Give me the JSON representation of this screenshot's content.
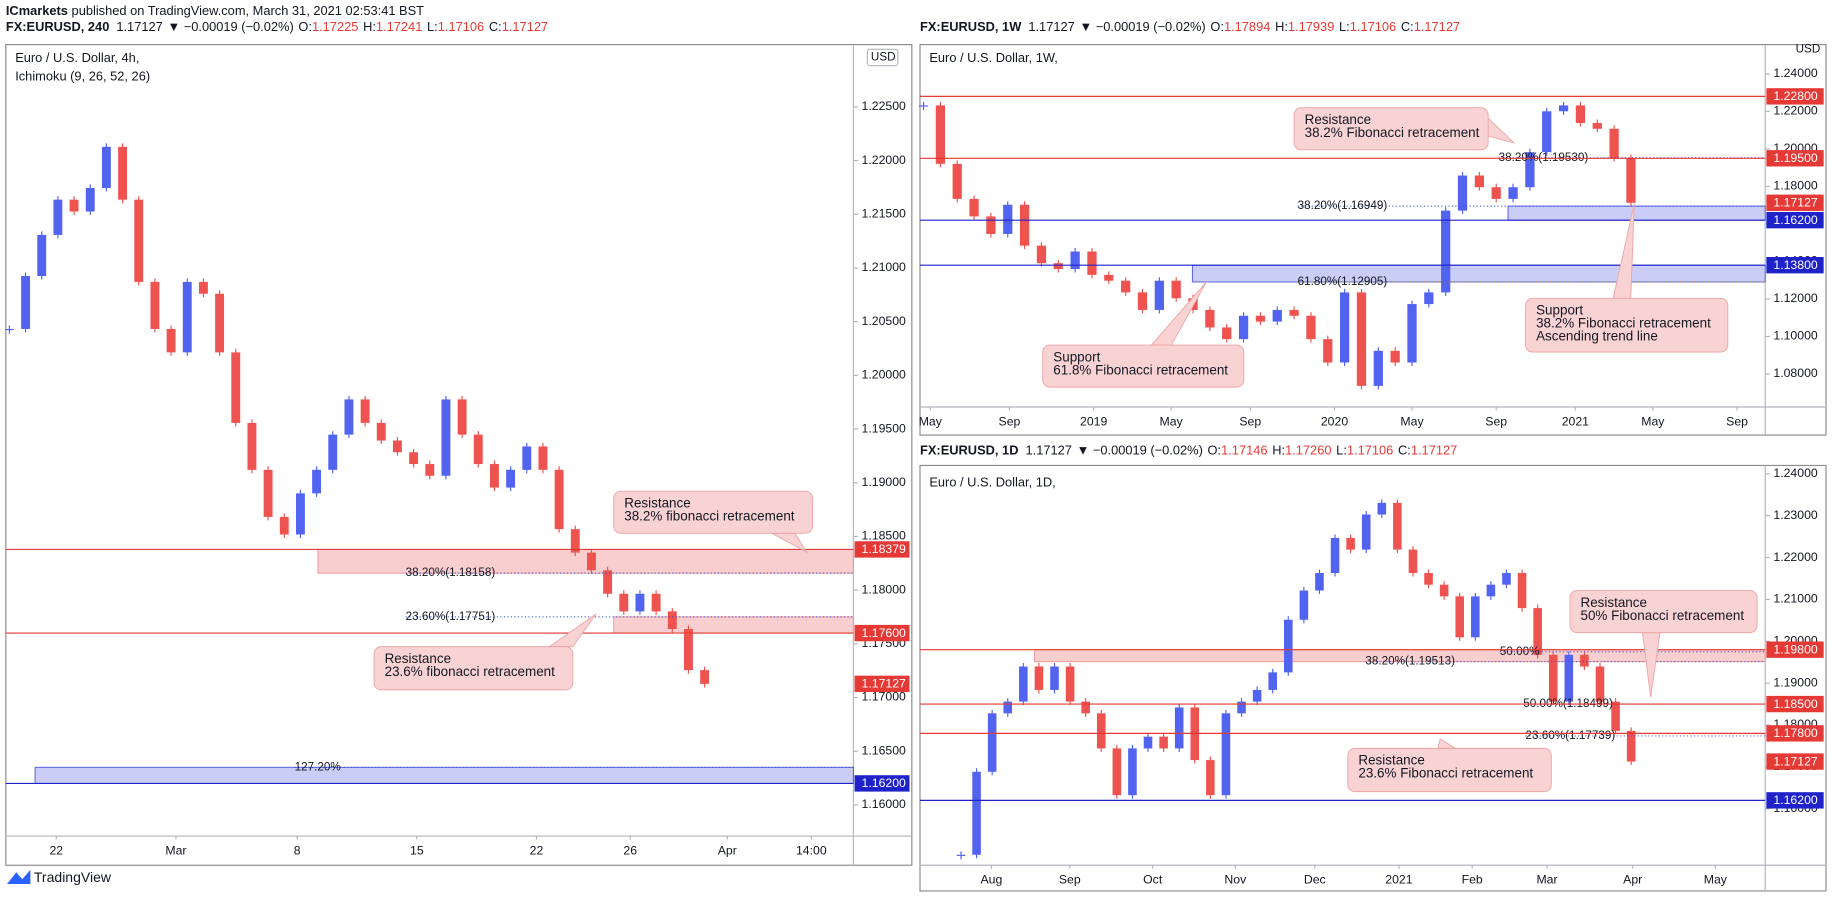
{
  "header": {
    "author": "ICmarkets",
    "published": "published on TradingView.com, March 31, 2021 02:53:41 BST"
  },
  "footer": {
    "brand": "TradingView"
  },
  "chart_data": [
    {
      "type": "candlestick",
      "symbol": "FX:EURUSD, 240",
      "last": "1.17127",
      "change": "▼ −0.00019 (−0.02%)",
      "ohlc": [
        {
          "label": "O:",
          "value": "1.17225"
        },
        {
          "label": "H:",
          "value": "1.17241"
        },
        {
          "label": "L:",
          "value": "1.17106"
        },
        {
          "label": "C:",
          "value": "1.17127"
        }
      ],
      "title": "Euro / U.S. Dollar, 4h,",
      "indicator": "Ichimoku (9, 26, 52, 26)",
      "currency": "USD",
      "up_color": "#5263f0",
      "down_color": "#ef5350",
      "values": [
        1.20432,
        1.20925,
        1.21308,
        1.21636,
        1.21526,
        1.21745,
        1.22128,
        1.21636,
        1.2087,
        1.20432,
        1.20214,
        1.2087,
        1.2076,
        1.20214,
        1.19557,
        1.1912,
        1.18682,
        1.18518,
        1.18901,
        1.1912,
        1.19448,
        1.19776,
        1.19557,
        1.19393,
        1.19284,
        1.19174,
        1.19065,
        1.19776,
        1.19448,
        1.19174,
        1.18955,
        1.1912,
        1.19338,
        1.1912,
        1.18568,
        1.18349,
        1.18185,
        1.17966,
        1.17802,
        1.17966,
        1.17802,
        1.17638,
        1.17255,
        1.17127
      ],
      "xlim": [
        -0.22,
        52.2
      ],
      "xticks": [
        {
          "value": 2.9,
          "label": "22"
        },
        {
          "value": 10.3,
          "label": "Mar"
        },
        {
          "value": 17.8,
          "label": "8"
        },
        {
          "value": 25.2,
          "label": "15"
        },
        {
          "value": 32.6,
          "label": "22"
        },
        {
          "value": 38.4,
          "label": "26"
        },
        {
          "value": 44.4,
          "label": "Apr"
        },
        {
          "value": 49.6,
          "label": "14:00"
        }
      ],
      "ylim": [
        1.1571,
        1.2308
      ],
      "yticks": [
        {
          "value": 1.16,
          "label": "1.16000"
        },
        {
          "value": 1.165,
          "label": "1.16500"
        },
        {
          "value": 1.17,
          "label": "1.17000"
        },
        {
          "value": 1.175,
          "label": "1.17500"
        },
        {
          "value": 1.18,
          "label": "1.18000"
        },
        {
          "value": 1.185,
          "label": "1.18500"
        },
        {
          "value": 1.19,
          "label": "1.19000"
        },
        {
          "value": 1.195,
          "label": "1.19500"
        },
        {
          "value": 1.2,
          "label": "1.20000"
        },
        {
          "value": 1.205,
          "label": "1.20500"
        },
        {
          "value": 1.21,
          "label": "1.21000"
        },
        {
          "value": 1.215,
          "label": "1.21500"
        },
        {
          "value": 1.22,
          "label": "1.22000"
        },
        {
          "value": 1.225,
          "label": "1.22500"
        }
      ],
      "levels": [
        {
          "value": 1.18379,
          "label": "1.18379",
          "color": "#e53935"
        },
        {
          "value": 1.176,
          "label": "1.17600",
          "color": "#e53935"
        },
        {
          "value": 1.162,
          "label": "1.16200",
          "color": "#1e22c8"
        }
      ],
      "last_price": {
        "value": 1.17127,
        "label": "1.17127",
        "color": "#e53935"
      },
      "zones": [
        {
          "lo": 1.18158,
          "hi": 1.18379,
          "color": "#f8c9c9"
        },
        {
          "lo": 1.176,
          "hi": 1.17751,
          "color": "#f8c9c9"
        },
        {
          "lo": 1.162,
          "hi": 1.1635,
          "color": "#c5c9f7"
        }
      ],
      "fibs": [
        {
          "value": 1.18158,
          "label": "38.20%(1.18158)",
          "color": "#2f49d1"
        },
        {
          "value": 1.17751,
          "label": "23.60%(1.17751)",
          "color": "#2f49d1"
        },
        {
          "value": 1.1635,
          "label": "127.20%",
          "color": "#2f49d1"
        }
      ],
      "annotations": [
        {
          "lines": [
            "Resistance",
            "38.2% fibonacci retracement"
          ]
        },
        {
          "lines": [
            "Resistance",
            "23.6% fibonacci retracement"
          ]
        }
      ]
    },
    {
      "type": "candlestick",
      "symbol": "FX:EURUSD, 1W",
      "last": "1.17127",
      "change": "▼ −0.00019 (−0.02%)",
      "ohlc": [
        {
          "label": "O:",
          "value": "1.17894"
        },
        {
          "label": "H:",
          "value": "1.17939"
        },
        {
          "label": "L:",
          "value": "1.17106"
        },
        {
          "label": "C:",
          "value": "1.17127"
        }
      ],
      "title": "Euro / U.S. Dollar, 1W,",
      "currency": "USD",
      "up_color": "#5263f0",
      "down_color": "#ef5350",
      "values": [
        1.22318,
        1.19203,
        1.17334,
        1.164,
        1.15465,
        1.17022,
        1.14842,
        1.13907,
        1.13596,
        1.1453,
        1.13284,
        1.12973,
        1.1235,
        1.11415,
        1.12973,
        1.12038,
        1.11415,
        1.10481,
        1.09858,
        1.11104,
        1.10792,
        1.11415,
        1.11104,
        1.09858,
        1.08612,
        1.1235,
        1.07366,
        1.09235,
        1.08612,
        1.11727,
        1.1235,
        1.16711,
        1.1858,
        1.17957,
        1.17334,
        1.17957,
        1.19826,
        1.22006,
        1.22318,
        1.21383,
        1.21072,
        1.19514,
        1.17127
      ],
      "xlim": [
        -0.21,
        49.97
      ],
      "xticks": [
        {
          "value": 0.4,
          "label": "May"
        },
        {
          "value": 5.1,
          "label": "Sep"
        },
        {
          "value": 10.1,
          "label": "2019"
        },
        {
          "value": 14.7,
          "label": "May"
        },
        {
          "value": 19.4,
          "label": "Sep"
        },
        {
          "value": 24.4,
          "label": "2020"
        },
        {
          "value": 29.0,
          "label": "May"
        },
        {
          "value": 34.0,
          "label": "Sep"
        },
        {
          "value": 38.7,
          "label": "2021"
        },
        {
          "value": 43.3,
          "label": "May"
        },
        {
          "value": 48.3,
          "label": "Sep"
        }
      ],
      "ylim": [
        1.0624,
        1.2556
      ],
      "yticks": [
        {
          "value": 1.08,
          "label": "1.08000"
        },
        {
          "value": 1.1,
          "label": "1.10000"
        },
        {
          "value": 1.12,
          "label": "1.12000"
        },
        {
          "value": 1.14,
          "label": "1.14000"
        },
        {
          "value": 1.16,
          "label": "1.16000"
        },
        {
          "value": 1.18,
          "label": "1.18000"
        },
        {
          "value": 1.2,
          "label": "1.20000"
        },
        {
          "value": 1.22,
          "label": "1.22000"
        },
        {
          "value": 1.24,
          "label": "1.24000"
        }
      ],
      "levels": [
        {
          "value": 1.228,
          "label": "1.22800",
          "color": "#e53935"
        },
        {
          "value": 1.195,
          "label": "1.19500",
          "color": "#e53935"
        },
        {
          "value": 1.162,
          "label": "1.16200",
          "color": "#1e22c8"
        },
        {
          "value": 1.138,
          "label": "1.13800",
          "color": "#1e22c8"
        }
      ],
      "last_price": {
        "value": 1.17127,
        "label": "1.17127",
        "color": "#e53935"
      },
      "zones": [
        {
          "lo": 1.162,
          "hi": 1.16949,
          "color": "#c5c9f7"
        },
        {
          "lo": 1.12905,
          "hi": 1.138,
          "color": "#c5c9f7"
        }
      ],
      "fibs": [
        {
          "value": 1.1953,
          "label": "38.20%(1.19530)",
          "color": "#2f49d1"
        },
        {
          "value": 1.16949,
          "label": "38.20%(1.16949)",
          "color": "#2f49d1"
        },
        {
          "value": 1.12905,
          "label": "61.80%(1.12905)",
          "color": "#b07a2a"
        }
      ],
      "annotations": [
        {
          "lines": [
            "Resistance",
            "38.2% Fibonacci retracement"
          ]
        },
        {
          "lines": [
            "Support",
            "38.2% Fibonacci retracement",
            "Ascending trend line"
          ]
        },
        {
          "lines": [
            "Support",
            "61.8% Fibonacci retracement"
          ]
        }
      ]
    },
    {
      "type": "candlestick",
      "symbol": "FX:EURUSD, 1D",
      "last": "1.17127",
      "change": "▼ −0.00019 (−0.02%)",
      "ohlc": [
        {
          "label": "O:",
          "value": "1.17146"
        },
        {
          "label": "H:",
          "value": "1.17260"
        },
        {
          "label": "L:",
          "value": "1.17106"
        },
        {
          "label": "C:",
          "value": "1.17127"
        }
      ],
      "title": "Euro / U.S. Dollar, 1D,",
      "up_color": "#5263f0",
      "down_color": "#ef5350",
      "values": [
        1.149,
        1.16883,
        1.18279,
        1.18559,
        1.19397,
        1.18838,
        1.19397,
        1.18559,
        1.18279,
        1.17441,
        1.16324,
        1.17441,
        1.17721,
        1.17441,
        1.18419,
        1.17162,
        1.16324,
        1.18279,
        1.18559,
        1.18838,
        1.19257,
        1.20514,
        1.21212,
        1.21631,
        1.22469,
        1.2219,
        1.23028,
        1.23307,
        1.2219,
        1.21631,
        1.21352,
        1.21073,
        1.20095,
        1.21073,
        1.21352,
        1.21631,
        1.20793,
        1.19676,
        1.18559,
        1.19676,
        1.19397,
        1.18559,
        1.1786,
        1.17127
      ],
      "xlim": [
        -2.63,
        51.6
      ],
      "xticks": [
        {
          "value": 1.95,
          "label": "Aug"
        },
        {
          "value": 6.98,
          "label": "Sep"
        },
        {
          "value": 12.3,
          "label": "Oct"
        },
        {
          "value": 17.6,
          "label": "Nov"
        },
        {
          "value": 22.7,
          "label": "Dec"
        },
        {
          "value": 28.1,
          "label": "2021"
        },
        {
          "value": 32.8,
          "label": "Feb"
        },
        {
          "value": 37.6,
          "label": "Mar"
        },
        {
          "value": 43.1,
          "label": "Apr"
        },
        {
          "value": 48.4,
          "label": "May"
        }
      ],
      "ylim": [
        1.1465,
        1.242
      ],
      "yticks": [
        {
          "value": 1.16,
          "label": "1.16000"
        },
        {
          "value": 1.17,
          "label": "1.17000"
        },
        {
          "value": 1.18,
          "label": "1.18000"
        },
        {
          "value": 1.19,
          "label": "1.19000"
        },
        {
          "value": 1.2,
          "label": "1.20000"
        },
        {
          "value": 1.21,
          "label": "1.21000"
        },
        {
          "value": 1.22,
          "label": "1.22000"
        },
        {
          "value": 1.23,
          "label": "1.23000"
        },
        {
          "value": 1.24,
          "label": "1.24000"
        }
      ],
      "levels": [
        {
          "value": 1.198,
          "label": "1.19800",
          "color": "#e53935"
        },
        {
          "value": 1.185,
          "label": "1.18500",
          "color": "#e53935"
        },
        {
          "value": 1.178,
          "label": "1.17800",
          "color": "#e53935"
        },
        {
          "value": 1.162,
          "label": "1.16200",
          "color": "#1e22c8"
        }
      ],
      "last_price": {
        "value": 1.17127,
        "label": "1.17127",
        "color": "#e53935"
      },
      "zones": [
        {
          "lo": 1.19513,
          "hi": 1.198,
          "color": "#f8c9c9"
        }
      ],
      "fibs": [
        {
          "value": 1.19513,
          "label": "38.20%(1.19513)",
          "color": "#2f49d1"
        },
        {
          "value": 1.1975,
          "label": "50.00%",
          "color": "#2f49d1"
        },
        {
          "value": 1.18499,
          "label": "50.00%(1.18499)",
          "color": "#2f49d1"
        },
        {
          "value": 1.17739,
          "label": "23.60%(1.17739)",
          "color": "#2f49d1"
        }
      ],
      "annotations": [
        {
          "lines": [
            "Resistance",
            "50% Fibonacci retracement"
          ]
        },
        {
          "lines": [
            "Resistance",
            "23.6% Fibonacci retracement"
          ]
        }
      ]
    }
  ]
}
